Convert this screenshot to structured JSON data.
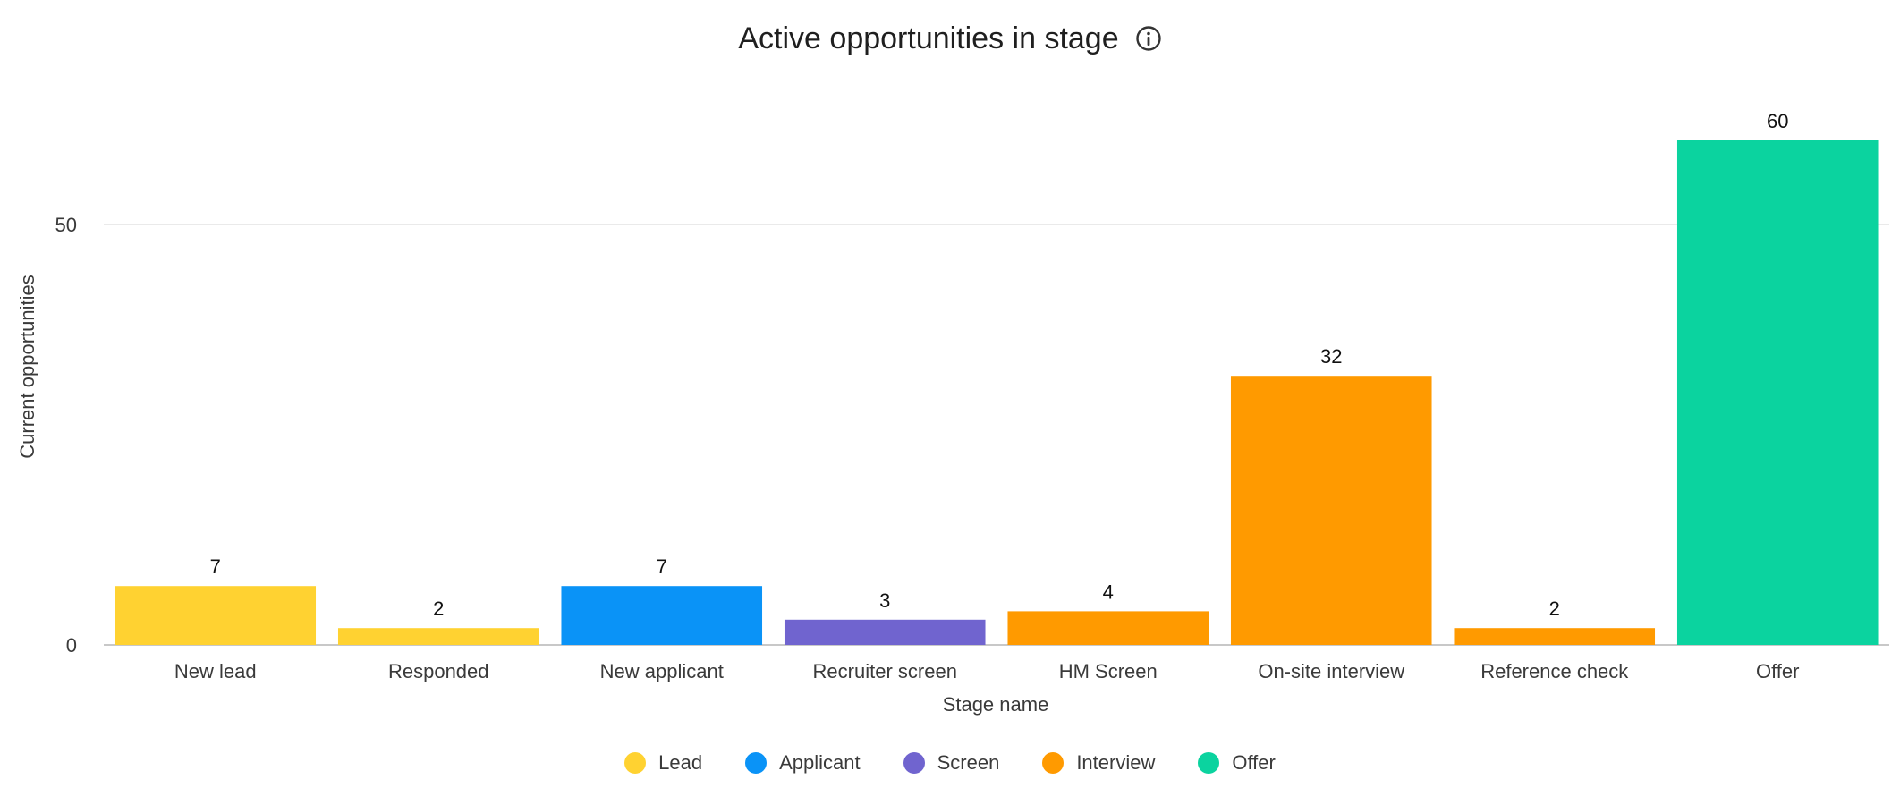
{
  "header": {
    "title": "Active opportunities in stage",
    "info_icon": "info-circle-icon"
  },
  "chart_data": {
    "type": "bar",
    "title": "Active opportunities in stage",
    "xlabel": "Stage name",
    "ylabel": "Current opportunities",
    "ylim": [
      0,
      64
    ],
    "yticks": [
      0,
      50
    ],
    "grid": true,
    "legend_position": "bottom",
    "categories": [
      "New lead",
      "Responded",
      "New applicant",
      "Recruiter screen",
      "HM Screen",
      "On-site interview",
      "Reference check",
      "Offer"
    ],
    "values": [
      7,
      2,
      7,
      3,
      4,
      32,
      2,
      60
    ],
    "groups": [
      "Lead",
      "Lead",
      "Applicant",
      "Screen",
      "Interview",
      "Interview",
      "Interview",
      "Offer"
    ],
    "legend": [
      {
        "name": "Lead",
        "color": "#FFD231"
      },
      {
        "name": "Applicant",
        "color": "#0A93F7"
      },
      {
        "name": "Screen",
        "color": "#7064CF"
      },
      {
        "name": "Interview",
        "color": "#FF9A00"
      },
      {
        "name": "Offer",
        "color": "#0BD39F"
      }
    ]
  }
}
